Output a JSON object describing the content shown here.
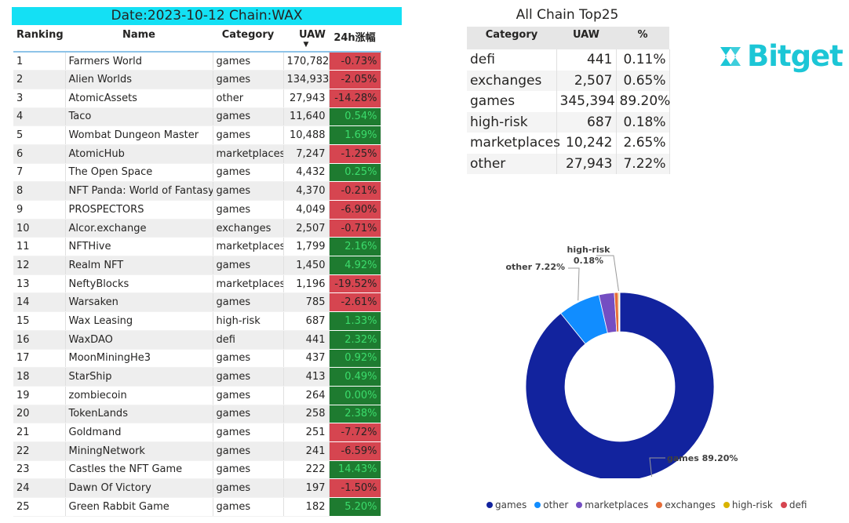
{
  "header": {
    "banner": "Date:2023-10-12 Chain:WAX"
  },
  "ranking_table": {
    "columns": [
      "Ranking",
      "Name",
      "Category",
      "UAW",
      "24h涨幅"
    ],
    "rows": [
      {
        "rank": "1",
        "name": "Farmers World",
        "category": "games",
        "uaw": "170,782",
        "change": "-0.73%",
        "dir": "neg"
      },
      {
        "rank": "2",
        "name": "Alien Worlds",
        "category": "games",
        "uaw": "134,933",
        "change": "-2.05%",
        "dir": "neg"
      },
      {
        "rank": "3",
        "name": "AtomicAssets",
        "category": "other",
        "uaw": "27,943",
        "change": "-14.28%",
        "dir": "neg"
      },
      {
        "rank": "4",
        "name": "Taco",
        "category": "games",
        "uaw": "11,640",
        "change": "0.54%",
        "dir": "pos"
      },
      {
        "rank": "5",
        "name": "Wombat Dungeon Master",
        "category": "games",
        "uaw": "10,488",
        "change": "1.69%",
        "dir": "pos"
      },
      {
        "rank": "6",
        "name": "AtomicHub",
        "category": "marketplaces",
        "uaw": "7,247",
        "change": "-1.25%",
        "dir": "neg"
      },
      {
        "rank": "7",
        "name": "The Open Space",
        "category": "games",
        "uaw": "4,432",
        "change": "0.25%",
        "dir": "pos"
      },
      {
        "rank": "8",
        "name": "NFT Panda: World of Fantasy",
        "category": "games",
        "uaw": "4,370",
        "change": "-0.21%",
        "dir": "neg"
      },
      {
        "rank": "9",
        "name": "PROSPECTORS",
        "category": "games",
        "uaw": "4,049",
        "change": "-6.90%",
        "dir": "neg"
      },
      {
        "rank": "10",
        "name": "Alcor.exchange",
        "category": "exchanges",
        "uaw": "2,507",
        "change": "-0.71%",
        "dir": "neg"
      },
      {
        "rank": "11",
        "name": "NFTHive",
        "category": "marketplaces",
        "uaw": "1,799",
        "change": "2.16%",
        "dir": "pos"
      },
      {
        "rank": "12",
        "name": "Realm NFT",
        "category": "games",
        "uaw": "1,450",
        "change": "4.92%",
        "dir": "pos"
      },
      {
        "rank": "13",
        "name": "NeftyBlocks",
        "category": "marketplaces",
        "uaw": "1,196",
        "change": "-19.52%",
        "dir": "neg"
      },
      {
        "rank": "14",
        "name": "Warsaken",
        "category": "games",
        "uaw": "785",
        "change": "-2.61%",
        "dir": "neg"
      },
      {
        "rank": "15",
        "name": "Wax Leasing",
        "category": "high-risk",
        "uaw": "687",
        "change": "1.33%",
        "dir": "pos"
      },
      {
        "rank": "16",
        "name": "WaxDAO",
        "category": "defi",
        "uaw": "441",
        "change": "2.32%",
        "dir": "pos"
      },
      {
        "rank": "17",
        "name": "MoonMiningHe3",
        "category": "games",
        "uaw": "437",
        "change": "0.92%",
        "dir": "pos"
      },
      {
        "rank": "18",
        "name": "StarShip",
        "category": "games",
        "uaw": "413",
        "change": "0.49%",
        "dir": "pos"
      },
      {
        "rank": "19",
        "name": "zombiecoin",
        "category": "games",
        "uaw": "264",
        "change": "0.00%",
        "dir": "pos"
      },
      {
        "rank": "20",
        "name": "TokenLands",
        "category": "games",
        "uaw": "258",
        "change": "2.38%",
        "dir": "pos"
      },
      {
        "rank": "21",
        "name": "Goldmand",
        "category": "games",
        "uaw": "251",
        "change": "-7.72%",
        "dir": "neg"
      },
      {
        "rank": "22",
        "name": "MiningNetwork",
        "category": "games",
        "uaw": "241",
        "change": "-6.59%",
        "dir": "neg"
      },
      {
        "rank": "23",
        "name": "Castles the NFT Game",
        "category": "games",
        "uaw": "222",
        "change": "14.43%",
        "dir": "pos"
      },
      {
        "rank": "24",
        "name": "Dawn Of Victory",
        "category": "games",
        "uaw": "197",
        "change": "-1.50%",
        "dir": "neg"
      },
      {
        "rank": "25",
        "name": "Green Rabbit Game",
        "category": "games",
        "uaw": "182",
        "change": "5.20%",
        "dir": "pos"
      }
    ]
  },
  "category_summary": {
    "title": "All Chain Top25",
    "columns": [
      "Category",
      "UAW",
      "%"
    ],
    "rows": [
      {
        "category": "defi",
        "uaw": "441",
        "pct": "0.11%"
      },
      {
        "category": "exchanges",
        "uaw": "2,507",
        "pct": "0.65%"
      },
      {
        "category": "games",
        "uaw": "345,394",
        "pct": "89.20%"
      },
      {
        "category": "high-risk",
        "uaw": "687",
        "pct": "0.18%"
      },
      {
        "category": "marketplaces",
        "uaw": "10,242",
        "pct": "2.65%"
      },
      {
        "category": "other",
        "uaw": "27,943",
        "pct": "7.22%"
      }
    ]
  },
  "brand": {
    "logo_text": "Bitget",
    "logo_icon": "bitget-logo-icon",
    "color": "#1cc6d6"
  },
  "colors": {
    "negative": "#d64550",
    "positive": "#1e7b30",
    "positive_text": "#3cdc6c",
    "banner": "#14e0f4"
  },
  "chart_data": {
    "type": "pie",
    "variant": "donut",
    "categories": [
      "games",
      "other",
      "marketplaces",
      "exchanges",
      "high-risk",
      "defi"
    ],
    "values": [
      345394,
      27943,
      10242,
      2507,
      687,
      441
    ],
    "percent_labels": [
      "games 89.20%",
      "other 7.22%",
      "",
      "",
      "high-risk 0.18%",
      ""
    ],
    "colors": [
      "#12239e",
      "#118dff",
      "#744ec2",
      "#e66c37",
      "#d9b300",
      "#d64550"
    ],
    "legend": [
      "games",
      "other",
      "marketplaces",
      "exchanges",
      "high-risk",
      "defi"
    ],
    "legend_position": "bottom"
  }
}
